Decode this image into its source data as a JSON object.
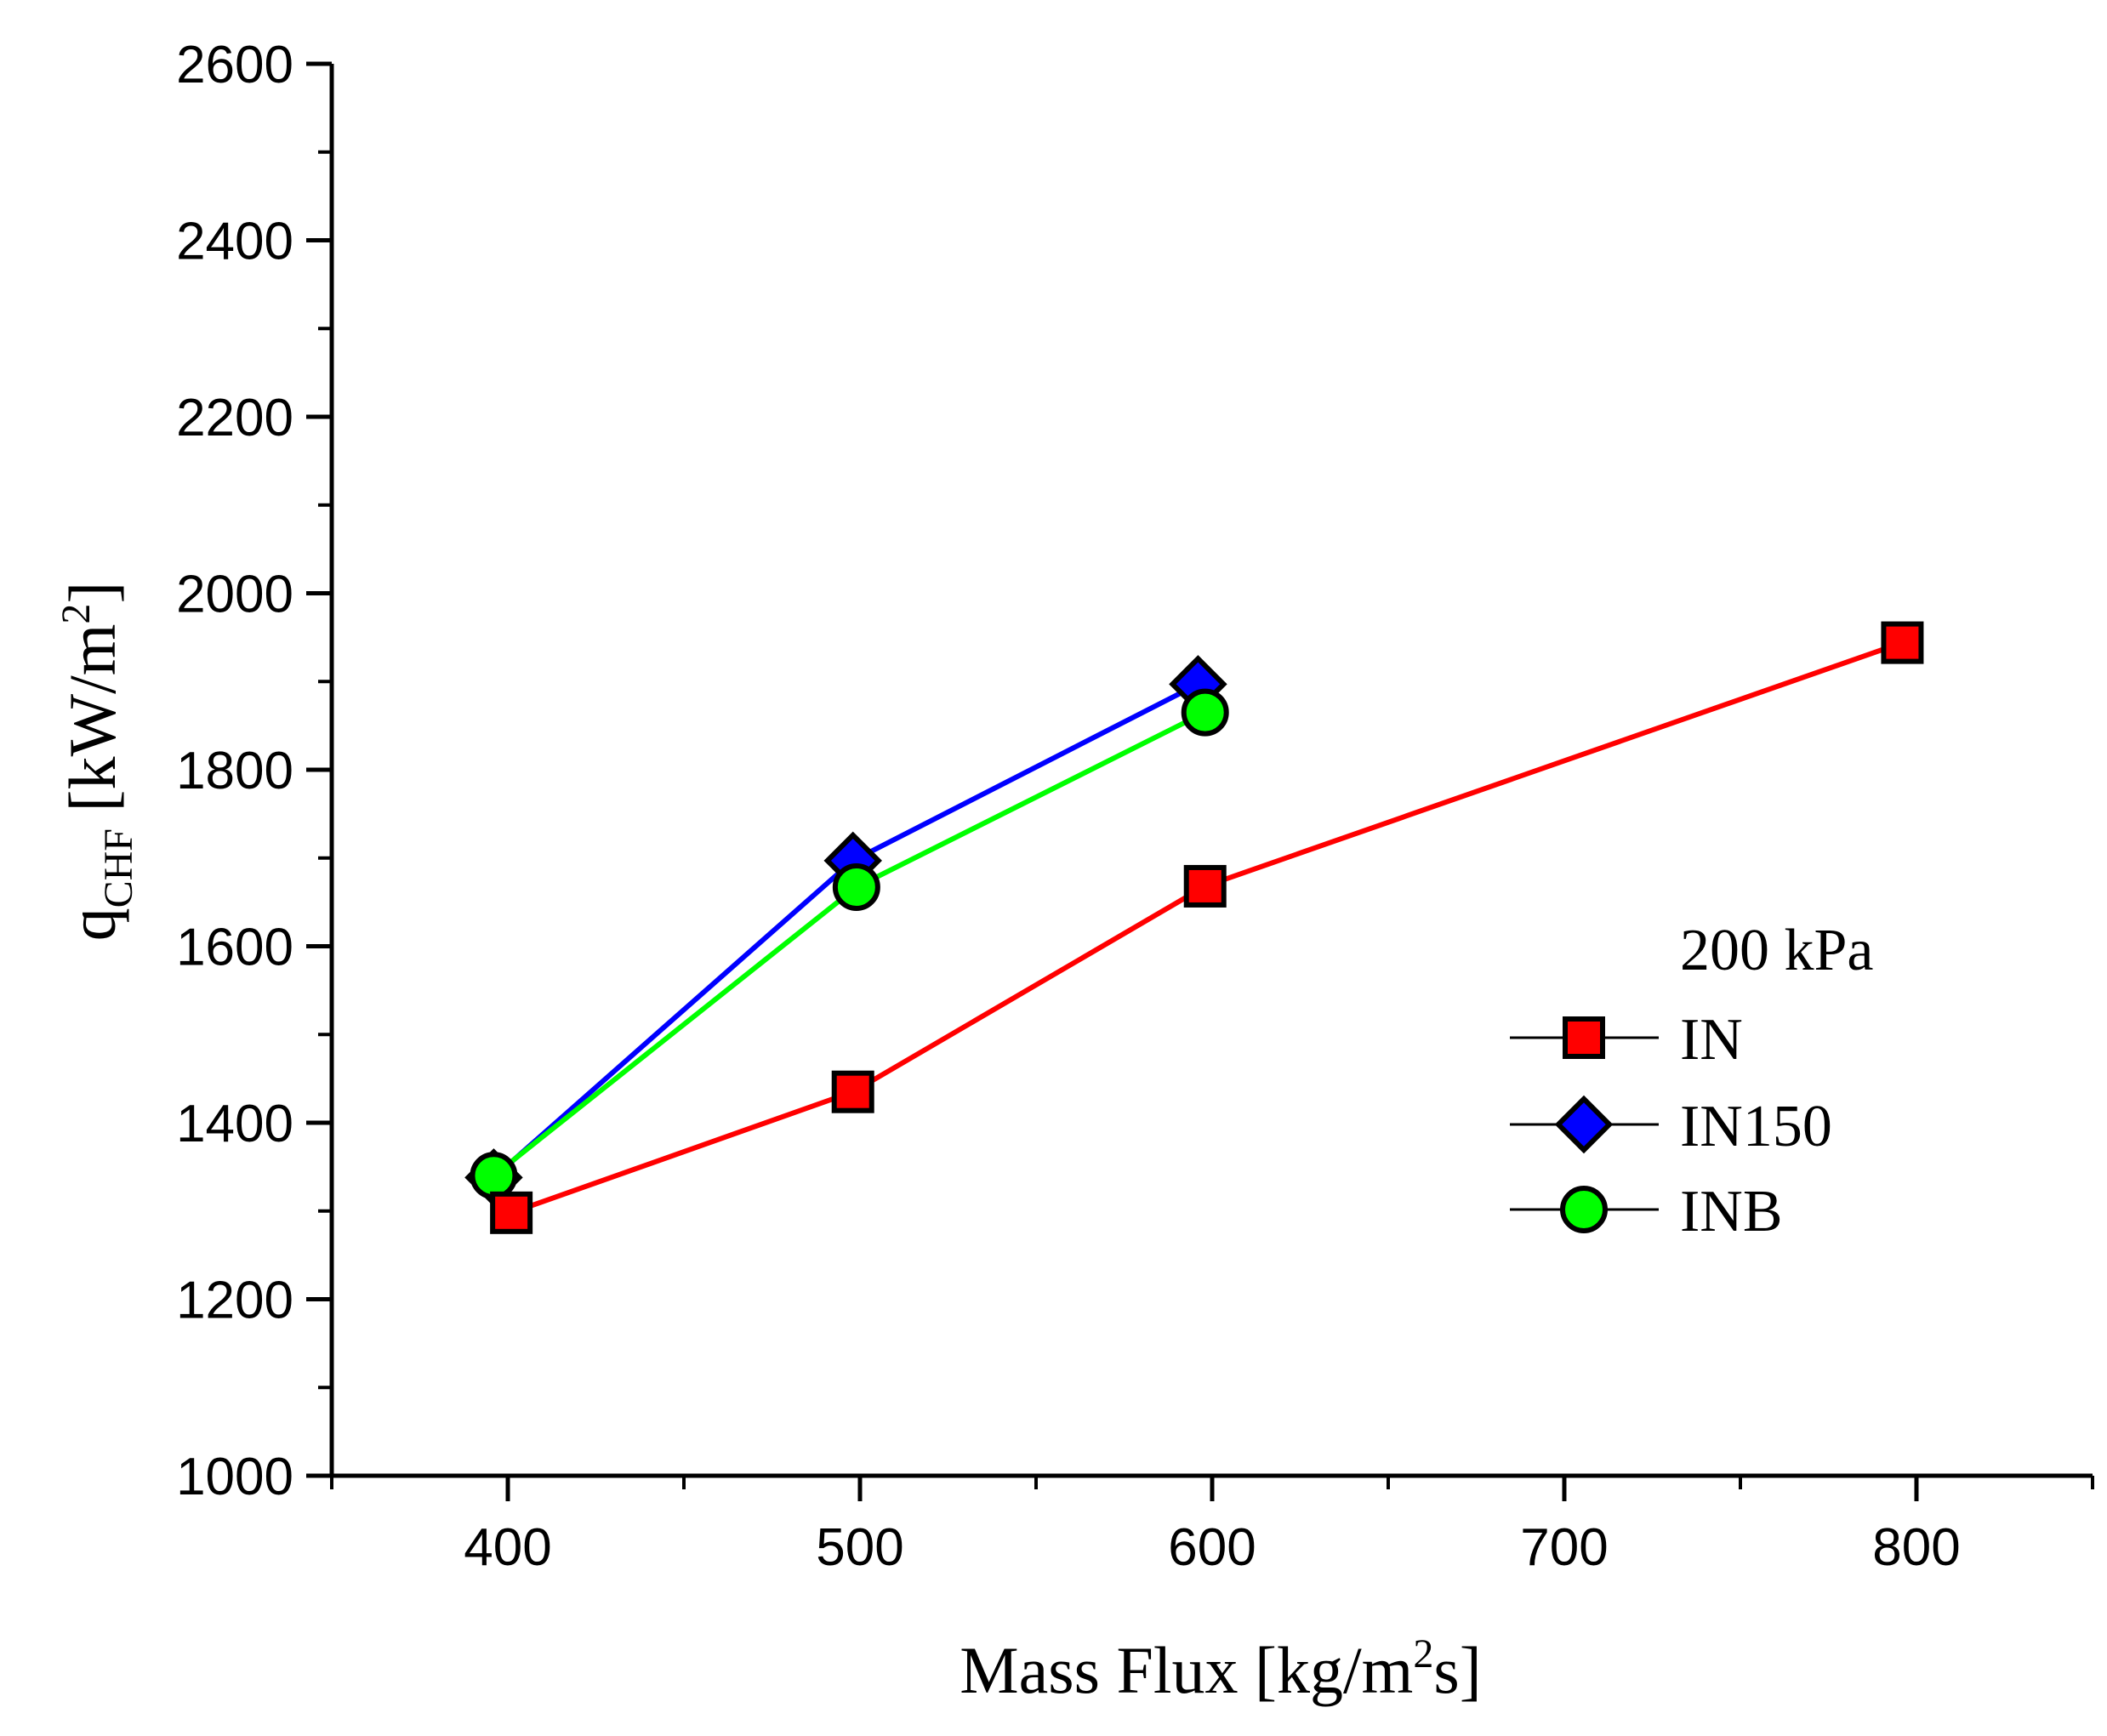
{
  "chart_data": {
    "type": "line",
    "title": "",
    "xlabel": {
      "main": "Mass Flux [kg/m",
      "sup": "2",
      "tail": "s]"
    },
    "ylabel": {
      "q": "q",
      "sub": "CHF",
      "unit": " [kW/m",
      "sup": "2",
      "close": "]"
    },
    "xlim": [
      350,
      850
    ],
    "ylim": [
      1000,
      2600
    ],
    "xticks": [
      400,
      500,
      600,
      700,
      800
    ],
    "yticks": [
      1000,
      1200,
      1400,
      1600,
      1800,
      2000,
      2200,
      2400,
      2600
    ],
    "xtick_labels": [
      "400",
      "500",
      "600",
      "700",
      "800"
    ],
    "ytick_labels": [
      "1000",
      "1200",
      "1400",
      "1600",
      "1800",
      "2000",
      "2200",
      "2400",
      "2600"
    ],
    "legend": {
      "title": "200 kPa",
      "placement": "center-right"
    },
    "series": [
      {
        "name": "IN",
        "marker": "square",
        "line_color": "#ff0000",
        "marker_color": "#ff0000",
        "x": [
          401,
          498,
          598,
          796
        ],
        "y": [
          1298,
          1435,
          1668,
          1944
        ]
      },
      {
        "name": "IN150",
        "marker": "diamond",
        "line_color": "#0000ff",
        "marker_color": "#0000ff",
        "x": [
          396,
          498,
          596
        ],
        "y": [
          1338,
          1697,
          1897
        ]
      },
      {
        "name": "INB",
        "marker": "circle",
        "line_color": "#00ff00",
        "marker_color": "#00ff00",
        "x": [
          396,
          499,
          598
        ],
        "y": [
          1340,
          1667,
          1865
        ]
      }
    ]
  }
}
